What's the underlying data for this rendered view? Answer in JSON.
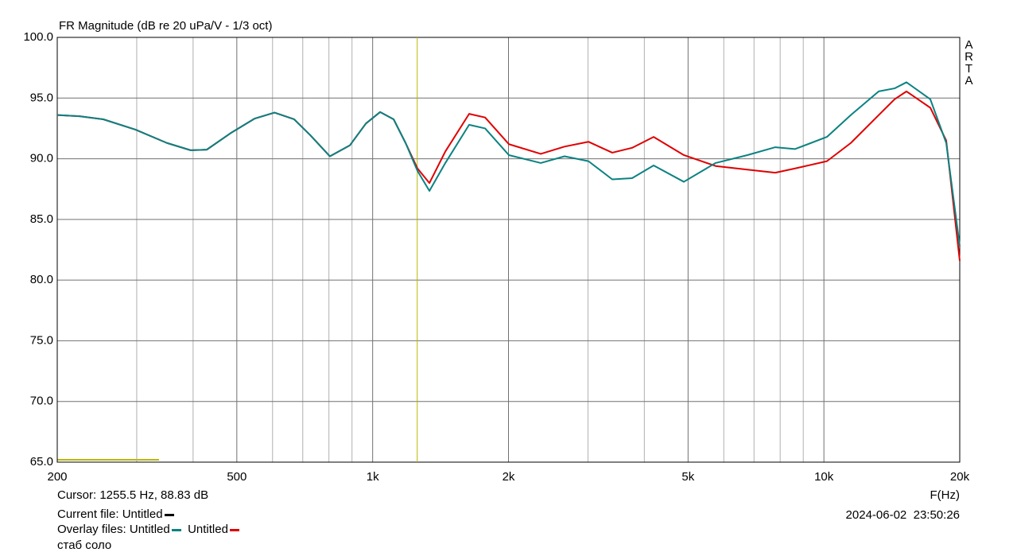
{
  "chart_data": {
    "type": "line",
    "title": "FR Magnitude (dB re 20 uPa/V - 1/3 oct)",
    "watermark": "ARTA",
    "x_label": "F(Hz)",
    "x": [
      200,
      224,
      253,
      298,
      350,
      395,
      429,
      484,
      547,
      606,
      670,
      727,
      804,
      890,
      966,
      1039,
      1113,
      1183,
      1257,
      1336,
      1449,
      1636,
      1775,
      2004,
      2358,
      2662,
      3007,
      3396,
      3758,
      4194,
      4893,
      5754,
      6768,
      7802,
      8634,
      10156,
      11472,
      13226,
      14342,
      15240,
      17212,
      18666,
      20000
    ],
    "series": [
      {
        "name": "Untitled",
        "color": "#0b8282",
        "values": [
          93.6,
          93.5,
          93.25,
          92.4,
          91.3,
          90.7,
          90.75,
          92.1,
          93.3,
          93.8,
          93.25,
          91.95,
          90.2,
          91.1,
          92.9,
          93.85,
          93.25,
          91.3,
          89.0,
          87.35,
          89.65,
          92.8,
          92.5,
          90.3,
          89.65,
          90.2,
          89.8,
          88.3,
          88.4,
          89.45,
          88.1,
          89.65,
          90.3,
          90.95,
          90.8,
          91.8,
          93.6,
          95.55,
          95.8,
          96.3,
          94.9,
          91.3,
          82.8
        ]
      },
      {
        "name": "Untitled",
        "color": "#e00000",
        "values": [
          93.6,
          93.5,
          93.25,
          92.4,
          91.3,
          90.7,
          90.75,
          92.1,
          93.3,
          93.8,
          93.25,
          91.95,
          90.2,
          91.1,
          92.9,
          93.85,
          93.25,
          91.3,
          89.2,
          88.0,
          90.6,
          93.7,
          93.4,
          91.2,
          90.4,
          91.0,
          91.4,
          90.5,
          90.9,
          91.8,
          90.3,
          89.4,
          89.1,
          88.85,
          89.2,
          89.8,
          91.3,
          93.6,
          94.9,
          95.55,
          94.2,
          91.5,
          81.6
        ]
      }
    ],
    "xlim": [
      200,
      20000
    ],
    "log_x": true,
    "xticks": [
      200,
      500,
      {
        "value": 1000,
        "label": "1k"
      },
      {
        "value": 2000,
        "label": "2k"
      },
      {
        "value": 5000,
        "label": "5k"
      },
      {
        "value": 10000,
        "label": "10k"
      },
      {
        "value": 20000,
        "label": "20k"
      }
    ],
    "xgrid": [
      300,
      400,
      600,
      700,
      800,
      900,
      3000,
      4000,
      6000,
      7000,
      8000,
      9000
    ],
    "ylim": [
      65,
      100
    ],
    "yticks": [
      {
        "value": 65,
        "label": "65.0"
      },
      {
        "value": 70,
        "label": "70.0"
      },
      {
        "value": 75,
        "label": "75.0"
      },
      {
        "value": 80,
        "label": "80.0"
      },
      {
        "value": 85,
        "label": "85.0"
      },
      {
        "value": 90,
        "label": "90.0"
      },
      {
        "value": 95,
        "label": "95.0"
      },
      {
        "value": 100,
        "label": "100.0"
      }
    ],
    "grid": true,
    "cursor": {
      "label": "Cursor: 1255.5 Hz, 88.83 dB",
      "x": 1255.5,
      "color": "#b8b800"
    },
    "current_file_label": "Current file:",
    "current_file": "Untitled",
    "overlay_label": "Overlay files:",
    "note": "стаб соло",
    "timestamp": "2024-06-02  23:50:26"
  }
}
